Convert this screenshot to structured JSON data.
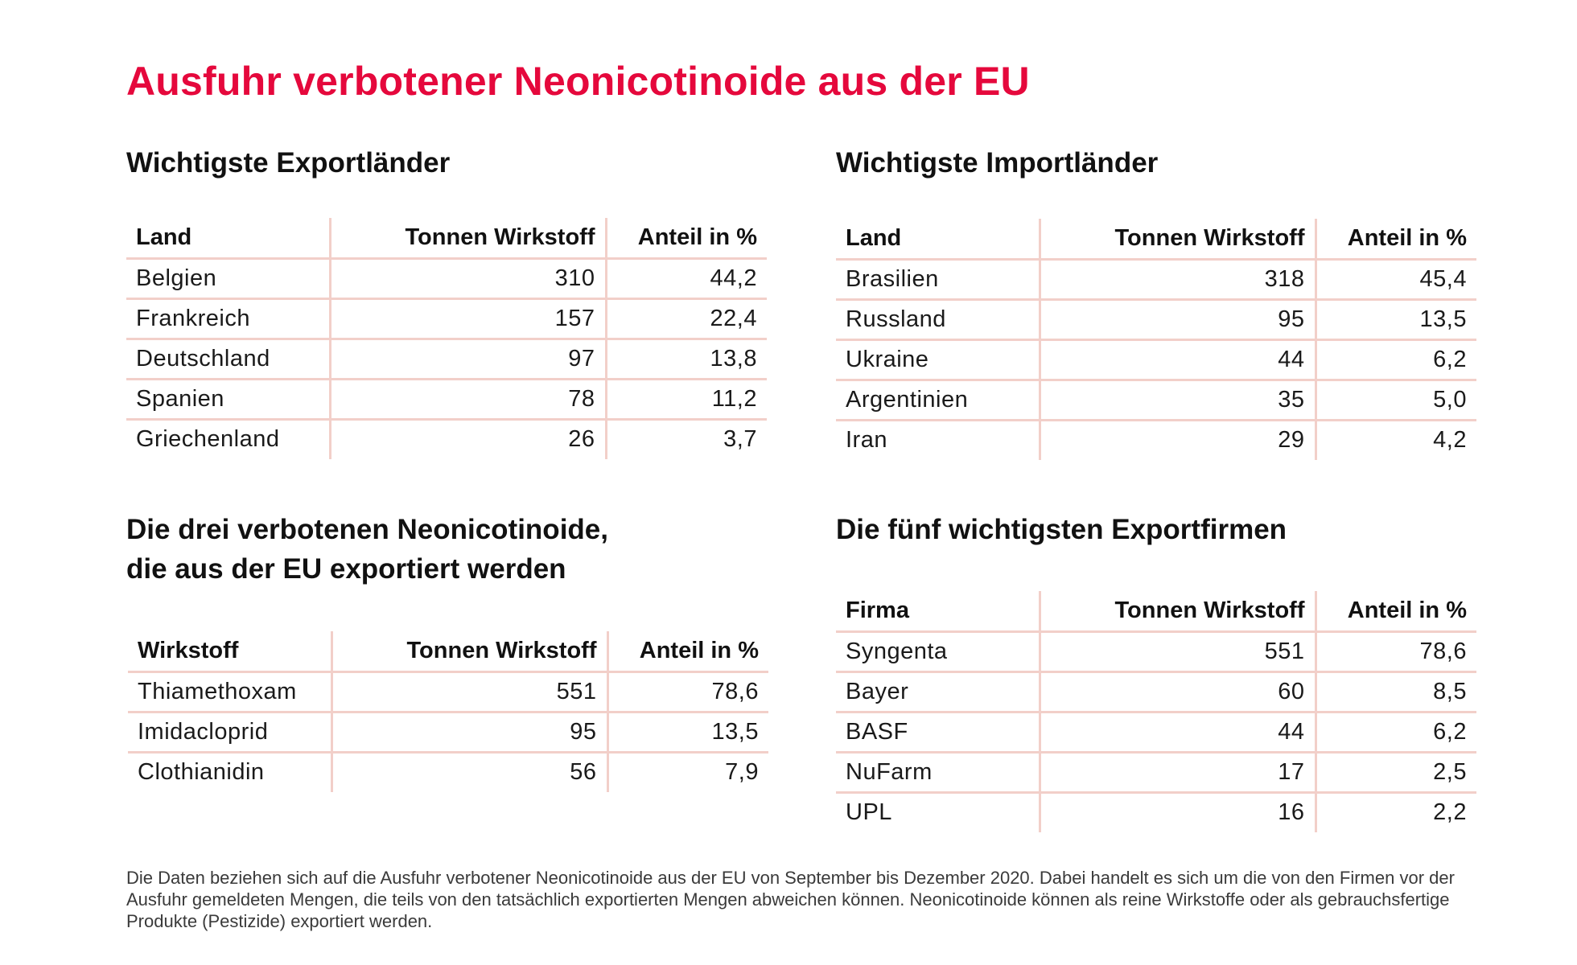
{
  "title": "Ausfuhr verbotener Neonicotinoide aus der EU",
  "colors": {
    "title": "#e5083c",
    "rule": "#f2cfc9",
    "text": "#1a1a1a"
  },
  "export_countries": {
    "title": "Wichtigste Exportländer",
    "headers": [
      "Land",
      "Tonnen Wirkstoff",
      "Anteil in %"
    ],
    "rows": [
      [
        "Belgien",
        "310",
        "44,2"
      ],
      [
        "Frankreich",
        "157",
        "22,4"
      ],
      [
        "Deutschland",
        "97",
        "13,8"
      ],
      [
        "Spanien",
        "78",
        "11,2"
      ],
      [
        "Griechenland",
        "26",
        "3,7"
      ]
    ]
  },
  "import_countries": {
    "title": "Wichtigste Importländer",
    "headers": [
      "Land",
      "Tonnen Wirkstoff",
      "Anteil in %"
    ],
    "rows": [
      [
        "Brasilien",
        "318",
        "45,4"
      ],
      [
        "Russland",
        "95",
        "13,5"
      ],
      [
        "Ukraine",
        "44",
        "6,2"
      ],
      [
        "Argentinien",
        "35",
        "5,0"
      ],
      [
        "Iran",
        "29",
        "4,2"
      ]
    ]
  },
  "substances": {
    "title_line1": "Die drei verbotenen Neonicotinoide,",
    "title_line2": "die aus der EU exportiert werden",
    "headers": [
      "Wirkstoff",
      "Tonnen Wirkstoff",
      "Anteil in %"
    ],
    "rows": [
      [
        "Thiamethoxam",
        "551",
        "78,6"
      ],
      [
        "Imidacloprid",
        "95",
        "13,5"
      ],
      [
        "Clothianidin",
        "56",
        "7,9"
      ]
    ]
  },
  "companies": {
    "title": "Die fünf wichtigsten Exportfirmen",
    "headers": [
      "Firma",
      "Tonnen Wirkstoff",
      "Anteil in %"
    ],
    "rows": [
      [
        "Syngenta",
        "551",
        "78,6"
      ],
      [
        "Bayer",
        "60",
        "8,5"
      ],
      [
        "BASF",
        "44",
        "6,2"
      ],
      [
        "NuFarm",
        "17",
        "2,5"
      ],
      [
        "UPL",
        "16",
        "2,2"
      ]
    ]
  },
  "footnote": "Die Daten beziehen sich auf die Ausfuhr verbotener Neonicotinoide aus der EU von September bis Dezember 2020. Dabei handelt es sich um die von den Firmen vor der Ausfuhr gemeldeten Mengen, die teils von den tatsächlich exportierten Mengen abweichen können. Neonicotinoide können als reine Wirkstoffe oder als gebrauchsfertige Produkte (Pestizide) exportiert werden."
}
